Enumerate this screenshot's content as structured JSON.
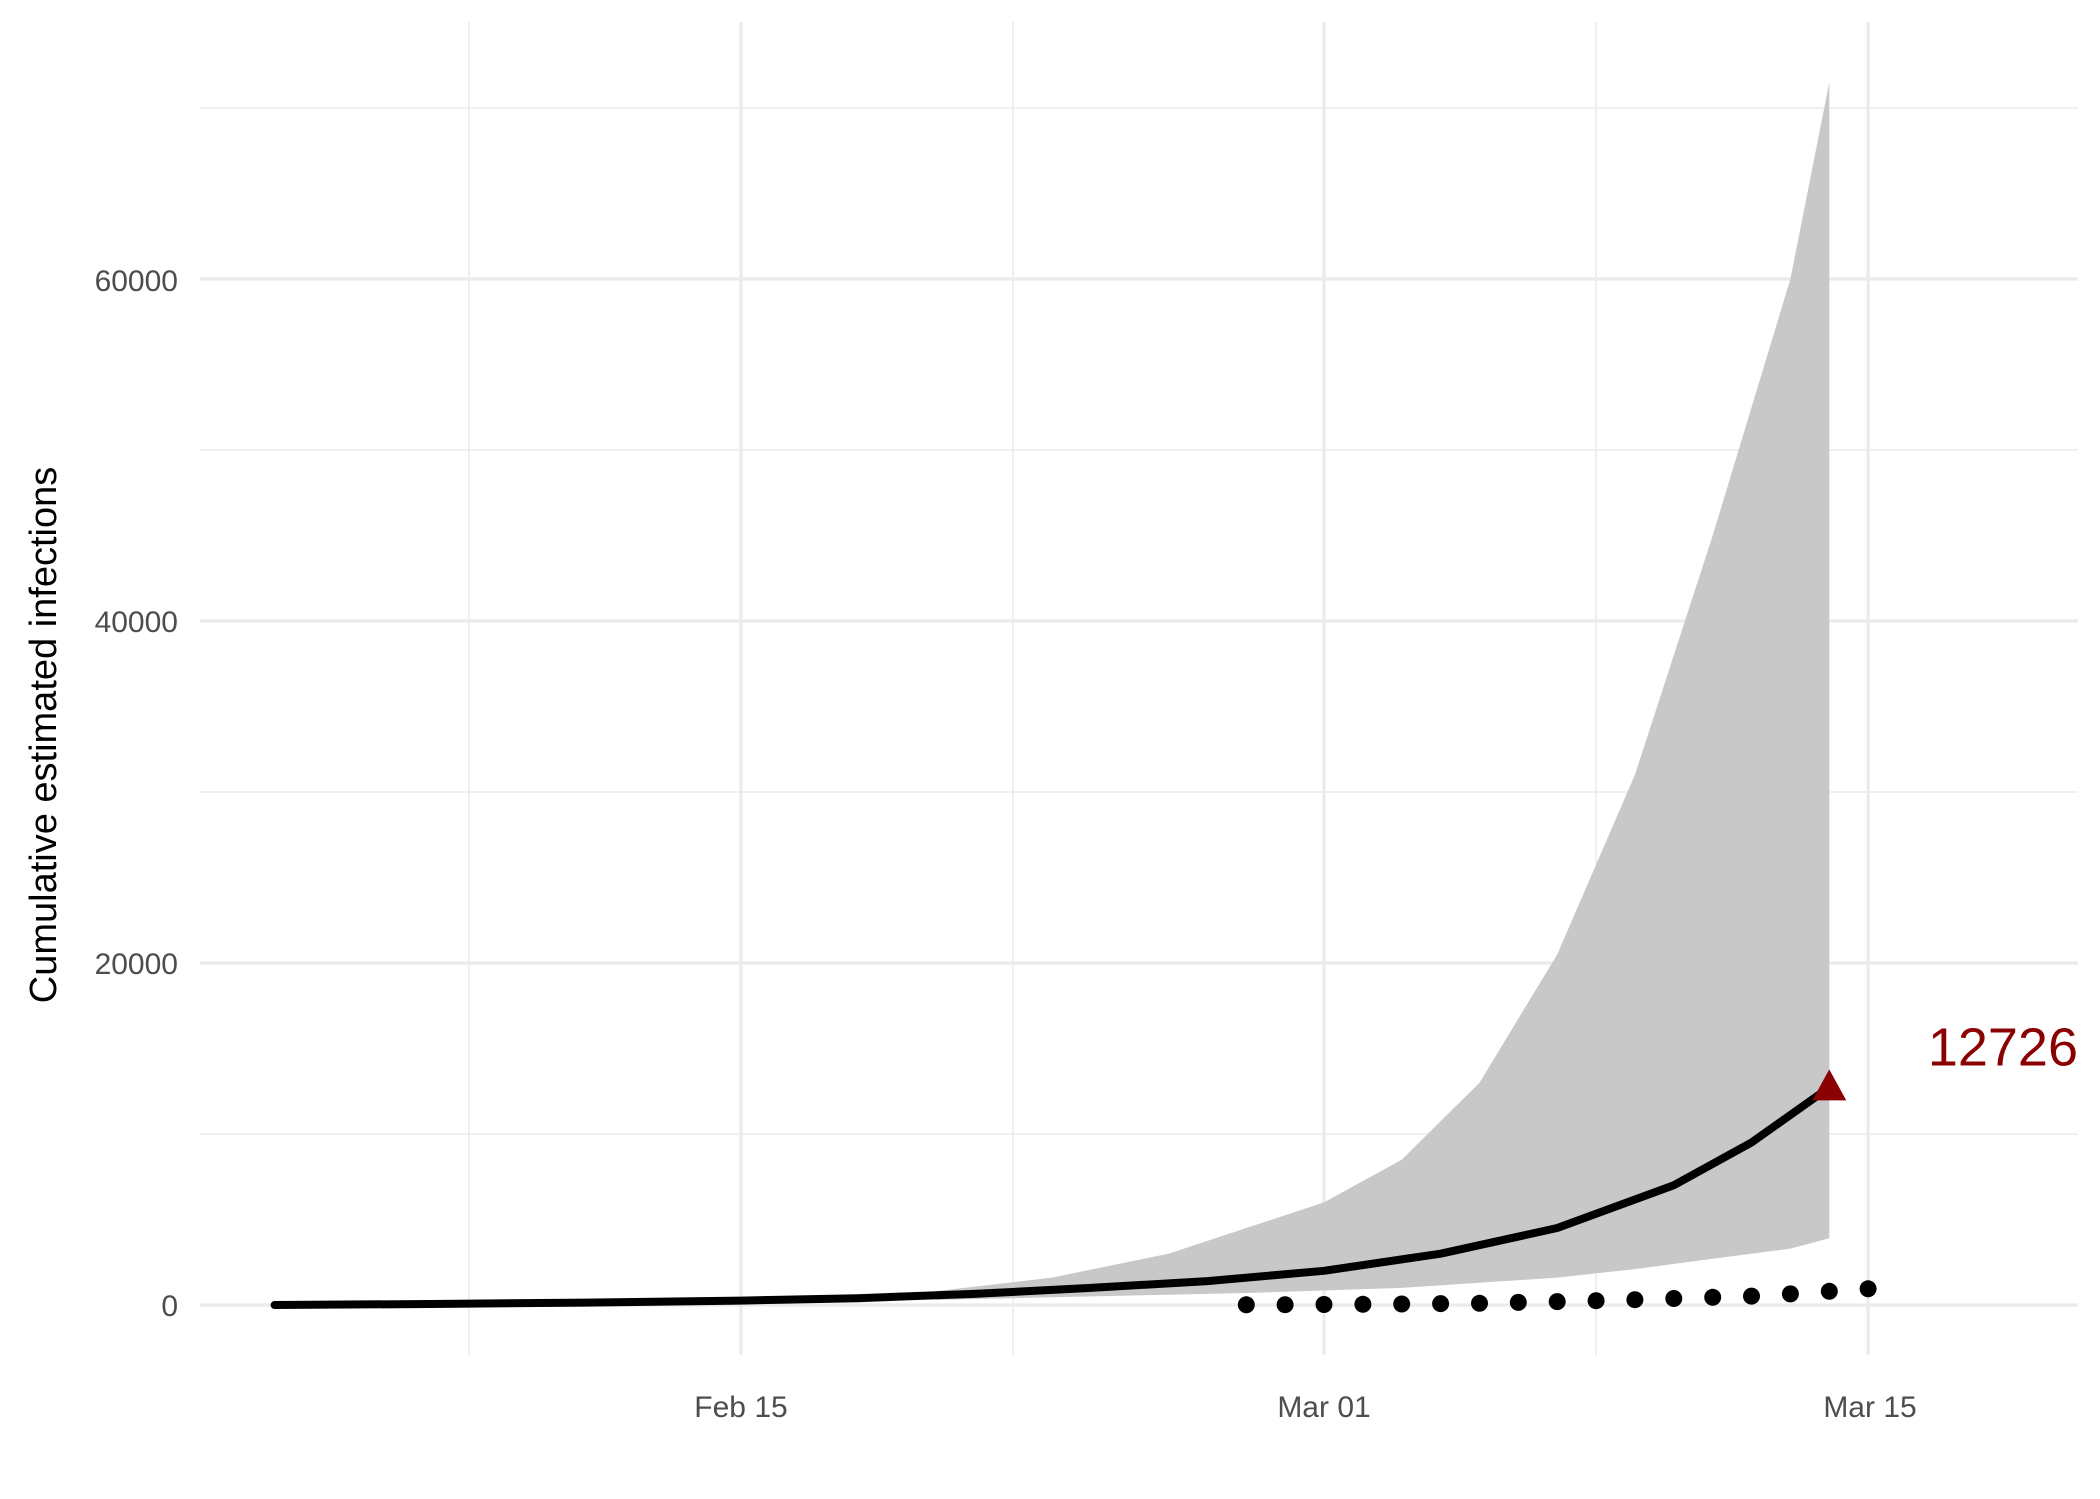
{
  "chart_data": {
    "type": "line",
    "title": "",
    "xlabel": "",
    "ylabel": "Cumulative estimated infections",
    "x_ticks": [
      "Feb 15",
      "Mar 01",
      "Mar 15"
    ],
    "y_ticks": [
      "0",
      "20000",
      "40000",
      "60000"
    ],
    "x_range": [
      "2020-02-01",
      "2020-03-20"
    ],
    "ylim": [
      -3000,
      70000
    ],
    "grid": true,
    "series": [
      {
        "kind": "line",
        "color": "#000000",
        "x": [
          "2020-02-03",
          "2020-02-07",
          "2020-02-11",
          "2020-02-15",
          "2020-02-18",
          "2020-02-21",
          "2020-02-24",
          "2020-02-27",
          "2020-03-01",
          "2020-03-04",
          "2020-03-07",
          "2020-03-10",
          "2020-03-12",
          "2020-03-14"
        ],
        "y": [
          0,
          60,
          140,
          260,
          400,
          650,
          1000,
          1400,
          2000,
          3000,
          4500,
          7000,
          9500,
          12726
        ]
      },
      {
        "kind": "ribbon",
        "color": "#c8c8c8",
        "x": [
          "2020-02-20",
          "2020-02-23",
          "2020-02-26",
          "2020-02-28",
          "2020-03-01",
          "2020-03-03",
          "2020-03-05",
          "2020-03-07",
          "2020-03-09",
          "2020-03-11",
          "2020-03-13",
          "2020-03-14"
        ],
        "lower": [
          300,
          450,
          600,
          700,
          850,
          1000,
          1300,
          1600,
          2100,
          2700,
          3300,
          3900
        ],
        "upper": [
          800,
          1600,
          3000,
          4500,
          6000,
          8500,
          13000,
          20500,
          31000,
          45000,
          60000,
          71500
        ]
      },
      {
        "kind": "points",
        "color": "#000000",
        "x": [
          "2020-02-28",
          "2020-02-29",
          "2020-03-01",
          "2020-03-02",
          "2020-03-03",
          "2020-03-04",
          "2020-03-05",
          "2020-03-06",
          "2020-03-07",
          "2020-03-08",
          "2020-03-09",
          "2020-03-10",
          "2020-03-11",
          "2020-03-12",
          "2020-03-13",
          "2020-03-14",
          "2020-03-15"
        ],
        "y": [
          10,
          20,
          30,
          40,
          60,
          80,
          100,
          150,
          200,
          250,
          310,
          380,
          450,
          520,
          650,
          800,
          950
        ]
      }
    ],
    "annotation": {
      "label": "12726",
      "x": "2020-03-14",
      "y": 12726,
      "color": "#8b0000",
      "marker": "triangle"
    }
  }
}
